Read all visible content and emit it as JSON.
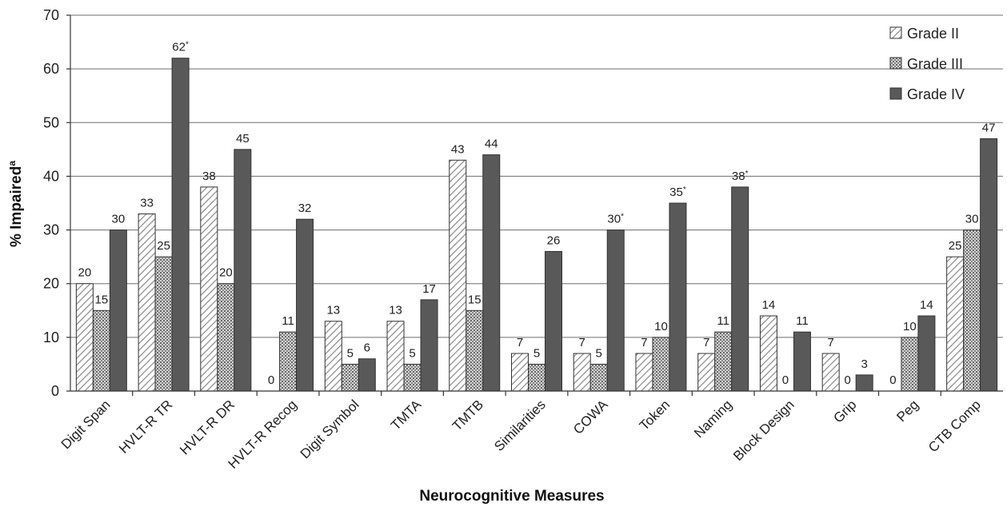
{
  "chart_data": {
    "type": "bar",
    "xlabel": "Neurocognitive Measures",
    "ylabel": "% Impaired",
    "ylabel_superscript": "a",
    "ylim": [
      0,
      70
    ],
    "yticks": [
      0,
      10,
      20,
      30,
      40,
      50,
      60,
      70
    ],
    "grid": true,
    "legend_position": "top-right",
    "categories": [
      "Digit Span",
      "HVLT-R TR",
      "HVLT-R DR",
      "HVLT-R Recog",
      "Digit Symbol",
      "TMTA",
      "TMTB",
      "Similarities",
      "COWA",
      "Token",
      "Naming",
      "Block Design",
      "Grip",
      "Peg",
      "CTB Comp"
    ],
    "series": [
      {
        "name": "Grade II",
        "pattern": "diagonal-hatch",
        "values": [
          20,
          33,
          38,
          0,
          13,
          13,
          43,
          7,
          7,
          7,
          7,
          14,
          7,
          0,
          25
        ],
        "labels": [
          "20",
          "33",
          "38",
          "0",
          "13",
          "13",
          "43",
          "7",
          "7",
          "7",
          "7",
          "14",
          "7",
          "0",
          "25"
        ]
      },
      {
        "name": "Grade III",
        "pattern": "dots",
        "values": [
          15,
          25,
          20,
          11,
          5,
          5,
          15,
          5,
          5,
          10,
          11,
          0,
          0,
          10,
          30
        ],
        "labels": [
          "15",
          "25",
          "20",
          "11",
          "5",
          "5",
          "15",
          "5",
          "5",
          "10",
          "11",
          "0",
          "0",
          "10",
          "30"
        ]
      },
      {
        "name": "Grade IV",
        "pattern": "solid",
        "color": "#595959",
        "values": [
          30,
          62,
          45,
          32,
          6,
          17,
          44,
          26,
          30,
          35,
          38,
          11,
          3,
          14,
          47
        ],
        "labels": [
          "30",
          "62*",
          "45",
          "32",
          "6",
          "17",
          "44",
          "26",
          "30*",
          "35*",
          "38*",
          "11",
          "3",
          "14",
          "47"
        ]
      }
    ]
  }
}
